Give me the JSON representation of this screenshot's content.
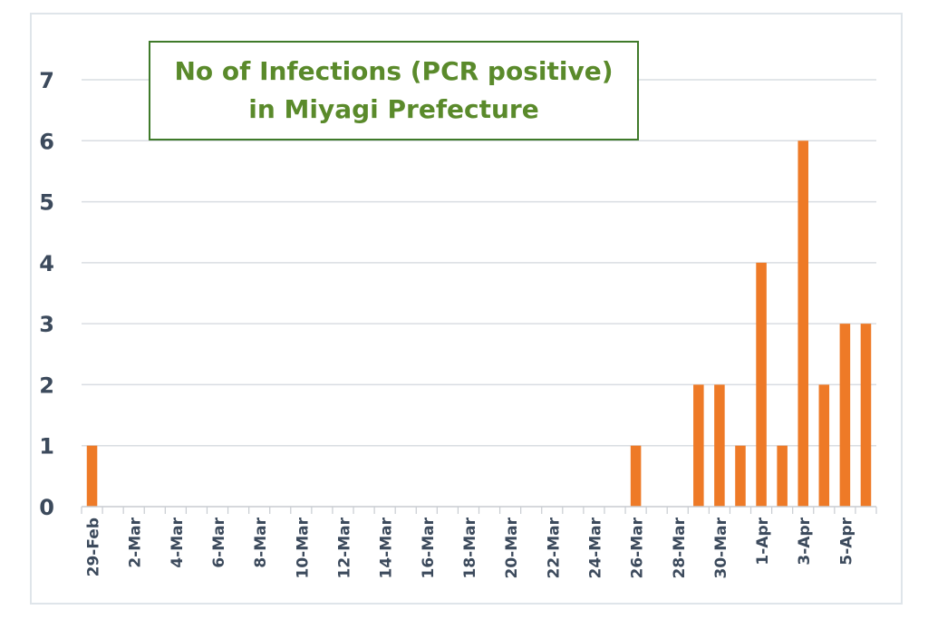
{
  "chart_data": {
    "type": "bar",
    "title_lines": [
      "No of Infections (PCR positive)",
      "in Miyagi Prefecture"
    ],
    "xlabel": "",
    "ylabel": "",
    "ylim": [
      0,
      7
    ],
    "yticks": [
      0,
      1,
      2,
      3,
      4,
      5,
      6,
      7
    ],
    "grid": true,
    "bar_color": "#ee7a27",
    "categories": [
      "29-Feb",
      "1-Mar",
      "2-Mar",
      "3-Mar",
      "4-Mar",
      "5-Mar",
      "6-Mar",
      "7-Mar",
      "8-Mar",
      "9-Mar",
      "10-Mar",
      "11-Mar",
      "12-Mar",
      "13-Mar",
      "14-Mar",
      "15-Mar",
      "16-Mar",
      "17-Mar",
      "18-Mar",
      "19-Mar",
      "20-Mar",
      "21-Mar",
      "22-Mar",
      "23-Mar",
      "24-Mar",
      "25-Mar",
      "26-Mar",
      "27-Mar",
      "28-Mar",
      "29-Mar",
      "30-Mar",
      "31-Mar",
      "1-Apr",
      "2-Apr",
      "3-Apr",
      "4-Apr",
      "5-Apr",
      "6-Apr"
    ],
    "x_tick_labels": [
      "29-Feb",
      "2-Mar",
      "4-Mar",
      "6-Mar",
      "8-Mar",
      "10-Mar",
      "12-Mar",
      "14-Mar",
      "16-Mar",
      "18-Mar",
      "20-Mar",
      "22-Mar",
      "24-Mar",
      "26-Mar",
      "28-Mar",
      "30-Mar",
      "1-Apr",
      "3-Apr",
      "5-Apr"
    ],
    "values": [
      1,
      0,
      0,
      0,
      0,
      0,
      0,
      0,
      0,
      0,
      0,
      0,
      0,
      0,
      0,
      0,
      0,
      0,
      0,
      0,
      0,
      0,
      0,
      0,
      0,
      0,
      1,
      0,
      0,
      2,
      2,
      1,
      4,
      1,
      6,
      2,
      3,
      3
    ]
  }
}
